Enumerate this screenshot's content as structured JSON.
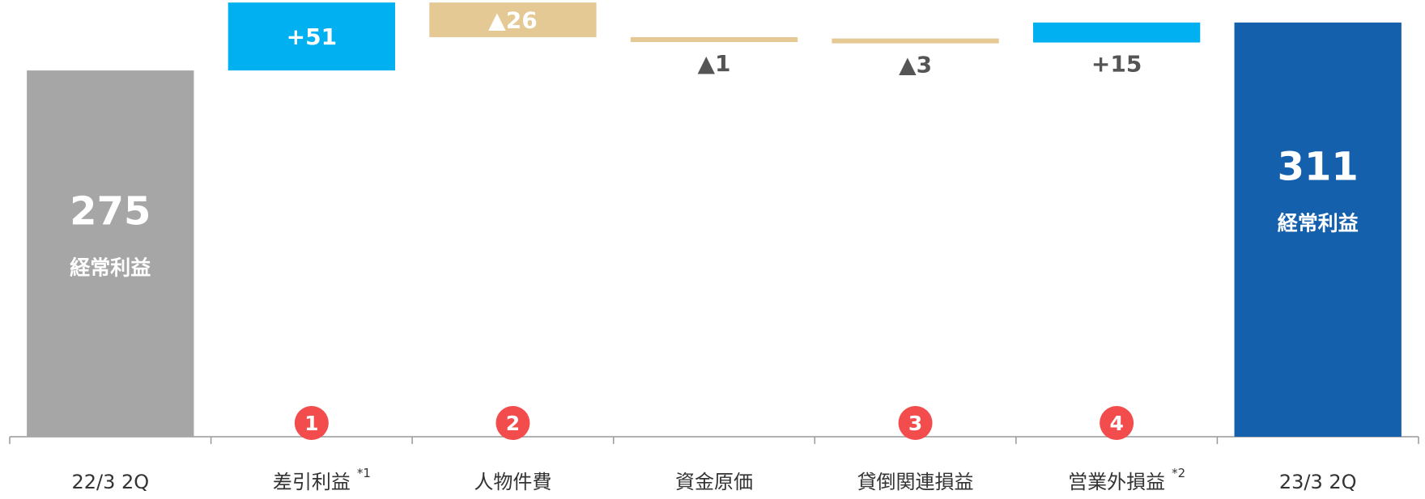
{
  "chart_data": {
    "type": "bar",
    "subtype": "waterfall",
    "categories": [
      "22/3 2Q",
      "差引利益",
      "人物件費",
      "資金原価",
      "貸倒関連損益",
      "営業外損益",
      "23/3 2Q"
    ],
    "category_footnotes": [
      "",
      "*1",
      "",
      "",
      "",
      "*2",
      ""
    ],
    "steps": [
      {
        "kind": "total",
        "value": 275,
        "label": "275",
        "sublabel": "経常利益"
      },
      {
        "kind": "delta",
        "value": 51,
        "label": "+51",
        "marker": "1"
      },
      {
        "kind": "delta",
        "value": -26,
        "label": "▲26",
        "marker": "2"
      },
      {
        "kind": "delta",
        "value": -1,
        "label": "▲1",
        "marker": ""
      },
      {
        "kind": "delta",
        "value": -3,
        "label": "▲3",
        "marker": "3"
      },
      {
        "kind": "delta",
        "value": 15,
        "label": "+15",
        "marker": "4"
      },
      {
        "kind": "total",
        "value": 311,
        "label": "311",
        "sublabel": "経常利益"
      }
    ],
    "ylim": [
      0,
      360
    ],
    "grid": false,
    "legend": "none",
    "title": "",
    "xlabel": "",
    "ylabel": ""
  },
  "colors": {
    "start_total": "#a6a6a6",
    "end_total": "#1560ad",
    "increase": "#00b0f0",
    "decrease": "#e4c995",
    "marker": "#f24c4c",
    "axis": "#999999",
    "category_text": "#333333",
    "outside_label": "#555555",
    "inside_label": "#ffffff"
  }
}
